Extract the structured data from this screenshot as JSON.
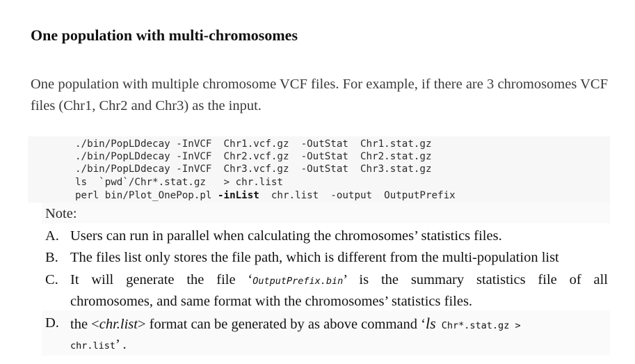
{
  "section": {
    "heading": "One population with multi-chromosomes",
    "intro": "One population with multiple chromosome VCF files. For example, if there are 3 chromosomes VCF files (Chr1, Chr2 and Chr3) as the input."
  },
  "code": {
    "line1": "./bin/PopLDdecay -InVCF  Chr1.vcf.gz  -OutStat  Chr1.stat.gz",
    "line2": "./bin/PopLDdecay -InVCF  Chr2.vcf.gz  -OutStat  Chr2.stat.gz",
    "line3": "./bin/PopLDdecay -InVCF  Chr3.vcf.gz  -OutStat  Chr3.stat.gz",
    "line4": "ls  `pwd`/Chr*.stat.gz   > chr.list",
    "line5_prefix": "perl bin/Plot_OnePop.pl ",
    "line5_flag": "-inList",
    "line5_suffix": "  chr.list  -output  OutputPrefix"
  },
  "notes": {
    "title": "Note:",
    "a_letter": "A.",
    "a_text": "Users can run in parallel when calculating the chromosomes’ statistics files.",
    "b_letter": "B.",
    "b_text": "The files list only stores the file path, which is different from the multi-population list",
    "c_letter": "C.",
    "c_pre": "It will generate the file ‘",
    "c_file": "OutputPrefix.bin",
    "c_post": "’ is the summary statistics file of all",
    "c_line2": "chromosomes, and same format with the chromosomes’ statistics files.",
    "d_letter": "D.",
    "d_pre": "the <",
    "d_italic": "chr.list",
    "d_mid": "> format can be generated by as above command ‘",
    "d_cmd_ls": "ls",
    "d_cmd_rest": " Chr*.stat.gz   >",
    "d_line2": "chr.list",
    "d_end": "’ ."
  }
}
